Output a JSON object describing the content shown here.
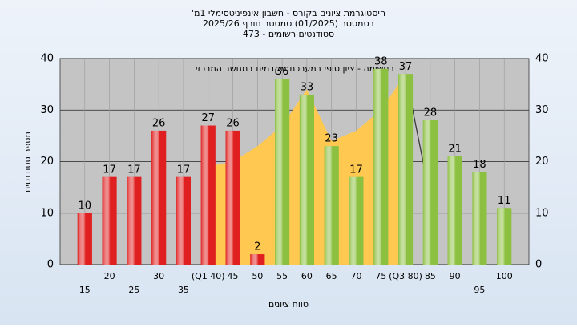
{
  "chart_data": {
    "type": "bar",
    "title": "היסטוגרמת ציונים בקורס - חשבון אינפיניטסימלי 1מ'",
    "subtitle": "בסמסטר (01/2025) סמסטר חורף 2025/26",
    "subtitle2": "סטודנטים רשומים - 473",
    "annotation": "בחשימה - ציון סופי במערכת מקדמית במחשב המרכזי",
    "ylabel": "מספר סטודנטים",
    "xlabel": "טווח ציונים",
    "categories": [
      "15",
      "20",
      "25",
      "30",
      "35",
      "(Q1 40)",
      "45",
      "50",
      "55",
      "60",
      "65",
      "70",
      "75",
      "(Q3 80)",
      "85",
      "90",
      "95",
      "100"
    ],
    "values": [
      10,
      17,
      17,
      26,
      17,
      27,
      26,
      2,
      36,
      33,
      23,
      17,
      38,
      37,
      28,
      21,
      18,
      11
    ],
    "colors": [
      "#e02020",
      "#e02020",
      "#e02020",
      "#e02020",
      "#e02020",
      "#e02020",
      "#e02020",
      "#e02020",
      "#8cc040",
      "#8cc040",
      "#8cc040",
      "#8cc040",
      "#8cc040",
      "#8cc040",
      "#8cc040",
      "#8cc040",
      "#8cc040",
      "#8cc040"
    ],
    "area_values": [
      null,
      null,
      null,
      null,
      null,
      19,
      20,
      23,
      27,
      34,
      24,
      26,
      30,
      37,
      null,
      null,
      null,
      null
    ],
    "area_color": "#ffc850",
    "line_values": [
      null,
      null,
      null,
      null,
      null,
      null,
      null,
      null,
      null,
      null,
      null,
      null,
      null,
      37,
      13,
      null,
      null,
      null
    ],
    "line_color": "#303030",
    "ylim": [
      0,
      40
    ],
    "yticks": [
      0,
      10,
      20,
      30,
      40
    ],
    "grid": true
  }
}
